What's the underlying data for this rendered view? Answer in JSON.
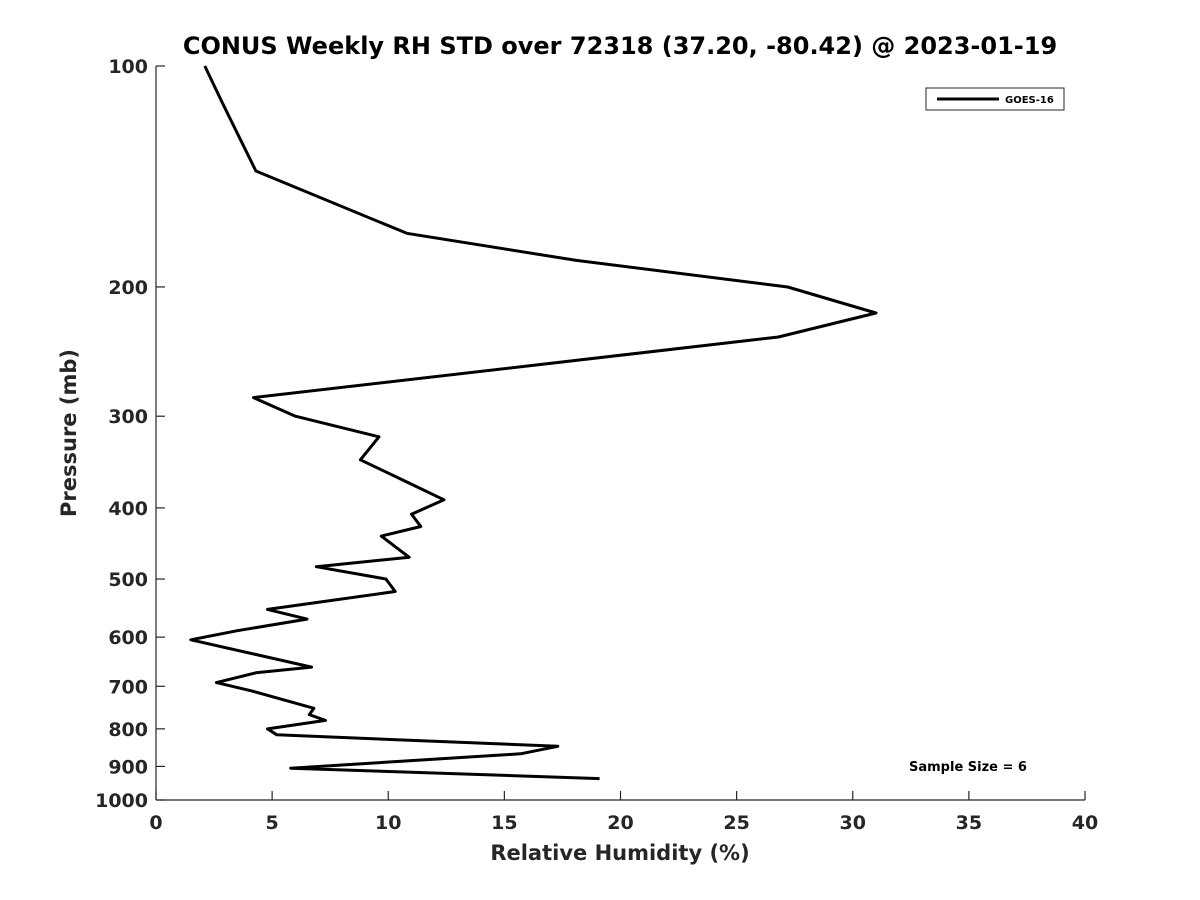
{
  "chart_data": {
    "type": "line",
    "title": "CONUS Weekly RH STD over 72318 (37.20, -80.42) @ 2023-01-19",
    "xlabel": "Relative Humidity (%)",
    "ylabel": "Pressure (mb)",
    "xlim": [
      0,
      40
    ],
    "ylim": [
      100,
      1000
    ],
    "yscale": "log",
    "y_reversed": true,
    "xticks": [
      0,
      5,
      10,
      15,
      20,
      25,
      30,
      35,
      40
    ],
    "yticks": [
      100,
      200,
      300,
      400,
      500,
      600,
      700,
      800,
      900,
      1000
    ],
    "grid": false,
    "legend_position": "top-right",
    "annotation": "Sample Size = 6",
    "series": [
      {
        "name": "GOES-16",
        "color": "#000000",
        "x": [
          2.1,
          2.9,
          4.3,
          10.8,
          18.1,
          27.2,
          31.0,
          26.8,
          4.2,
          6.0,
          9.6,
          8.8,
          10.9,
          12.4,
          11.0,
          11.4,
          9.7,
          10.9,
          6.9,
          9.9,
          10.3,
          4.8,
          6.5,
          3.5,
          1.5,
          6.7,
          4.3,
          2.6,
          4.1,
          6.8,
          6.6,
          7.3,
          4.8,
          5.2,
          17.3,
          15.7,
          5.8,
          19.1
        ],
        "y": [
          100,
          113,
          139,
          169,
          184,
          200,
          217,
          234,
          283,
          300,
          320,
          344,
          370,
          390,
          408,
          424,
          437,
          467,
          481,
          500,
          520,
          550,
          567,
          588,
          605,
          659,
          671,
          692,
          710,
          750,
          765,
          779,
          800,
          815,
          845,
          865,
          905,
          935
        ]
      }
    ]
  }
}
